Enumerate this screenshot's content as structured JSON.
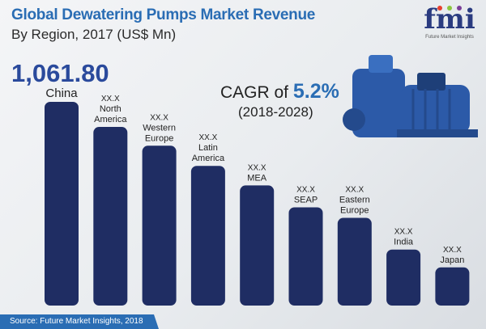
{
  "header": {
    "title": "Global Dewatering Pumps Market Revenue",
    "subtitle": "By  Region, 2017 (US$ Mn)"
  },
  "logo": {
    "text": "fmi",
    "name": "Future Market Insights"
  },
  "cagr": {
    "prefix": "CAGR of ",
    "value": "5.2%",
    "period": "(2018-2028)"
  },
  "source": "Source: Future Market Insights, 2018",
  "colors": {
    "bar": "#1f2d63",
    "accent": "#2a6db4"
  },
  "chart_data": {
    "type": "bar",
    "title": "Global Dewatering Pumps Market Revenue",
    "subtitle": "By Region, 2017 (US$ Mn)",
    "categories": [
      "China",
      "North America",
      "Western Europe",
      "Latin America",
      "MEA",
      "SEAP",
      "Eastern Europe",
      "India",
      "Japan"
    ],
    "label_lines": [
      [
        "China"
      ],
      [
        "North",
        "America"
      ],
      [
        "Western",
        "Europe"
      ],
      [
        "Latin",
        "America"
      ],
      [
        "MEA"
      ],
      [
        "SEAP"
      ],
      [
        "Eastern",
        "Europe"
      ],
      [
        "India"
      ],
      [
        "Japan"
      ]
    ],
    "value_labels": [
      "1,061.80",
      "XX.X",
      "XX.X",
      "XX.X",
      "XX.X",
      "XX.X",
      "XX.X",
      "XX.X",
      "XX.X"
    ],
    "values": [
      1061.8,
      931,
      833,
      728,
      626,
      512,
      457,
      292,
      199
    ],
    "values_note": "only China is labeled; others estimated from bar heights",
    "ylim": [
      0,
      1061.8
    ],
    "grid": false
  }
}
